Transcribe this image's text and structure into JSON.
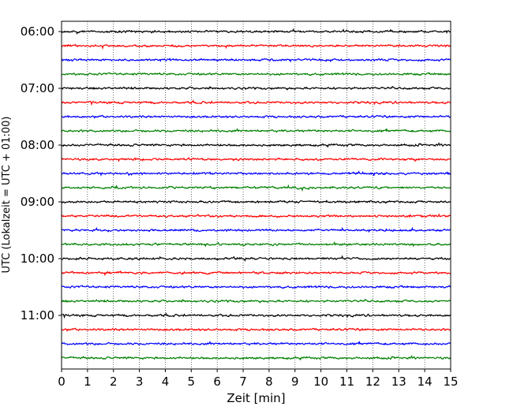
{
  "chart_data": {
    "type": "line",
    "title": "",
    "xlabel": "Zeit  [min]",
    "ylabel": "UTC (Lokalzeit = UTC + 01:00)",
    "xlim": [
      0,
      15
    ],
    "x_ticks": [
      "0",
      "1",
      "2",
      "3",
      "4",
      "5",
      "6",
      "7",
      "8",
      "9",
      "10",
      "11",
      "12",
      "13",
      "14",
      "15"
    ],
    "y_ticks": [
      "06:00",
      "07:00",
      "08:00",
      "09:00",
      "10:00",
      "11:00"
    ],
    "trace_start": "06:00",
    "trace_interval_minutes": 15,
    "trace_count": 24,
    "trace_colors": [
      "#000000",
      "#ff0000",
      "#0000ff",
      "#008000"
    ],
    "grid": "vertical dotted at each minute",
    "legend": "none"
  }
}
